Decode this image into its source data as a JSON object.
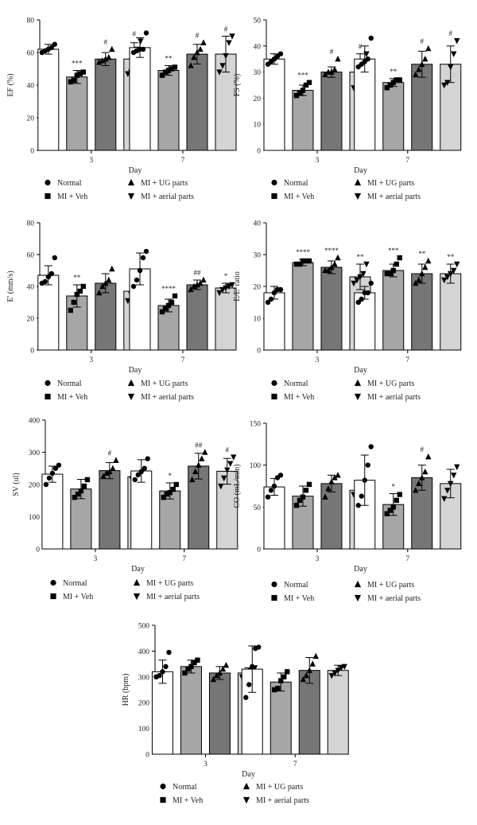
{
  "legend": {
    "normal": "Normal",
    "ug": "MI + UG parts",
    "veh": "MI + Veh",
    "aerial": "MI + aerial parts"
  },
  "colors": {
    "normal": "#ffffff",
    "veh": "#a6a6a6",
    "ug": "#767676",
    "aerial": "#d4d4d4"
  },
  "chart_data": [
    {
      "id": "ef",
      "type": "bar",
      "xlabel": "Day",
      "ylabel": "EF (%)",
      "categories": [
        "3",
        "7"
      ],
      "ylim": [
        0,
        80
      ],
      "yticks": [
        0,
        20,
        40,
        60,
        80
      ],
      "series": [
        {
          "name": "Normal",
          "marker": "circle",
          "values": [
            62,
            63
          ],
          "errors": [
            3,
            6
          ],
          "points": [
            [
              60,
              61,
              62,
              63,
              65
            ],
            [
              60,
              61,
              62,
              62,
              72
            ]
          ],
          "sig": [
            "",
            ""
          ]
        },
        {
          "name": "MI + Veh",
          "marker": "square",
          "values": [
            45,
            49
          ],
          "errors": [
            4,
            3
          ],
          "points": [
            [
              42,
              43,
              46,
              47,
              48
            ],
            [
              46,
              48,
              49,
              50,
              51
            ]
          ],
          "sig": [
            "***",
            "**"
          ]
        },
        {
          "name": "MI + UG parts",
          "marker": "up",
          "values": [
            56,
            59
          ],
          "errors": [
            4,
            6
          ],
          "points": [
            [
              54,
              55,
              56,
              57,
              62
            ],
            [
              52,
              57,
              60,
              62,
              66
            ]
          ],
          "sig": [
            "#",
            "#"
          ]
        },
        {
          "name": "MI + aerial parts",
          "marker": "down",
          "values": [
            56,
            59
          ],
          "errors": [
            10,
            11
          ],
          "points": [
            [
              47,
              48,
              55,
              62,
              67
            ],
            [
              48,
              52,
              58,
              66,
              70
            ]
          ],
          "sig": [
            "#",
            "#"
          ]
        }
      ]
    },
    {
      "id": "fs",
      "type": "bar",
      "xlabel": "Day",
      "ylabel": "FS (%)",
      "categories": [
        "3",
        "7"
      ],
      "ylim": [
        0,
        50
      ],
      "yticks": [
        0,
        10,
        20,
        30,
        40,
        50
      ],
      "series": [
        {
          "name": "Normal",
          "marker": "circle",
          "values": [
            35,
            35
          ],
          "errors": [
            2,
            5
          ],
          "points": [
            [
              33,
              34,
              35,
              36,
              37
            ],
            [
              32,
              33,
              34,
              35,
              43
            ]
          ],
          "sig": [
            "",
            ""
          ]
        },
        {
          "name": "MI + Veh",
          "marker": "square",
          "values": [
            23,
            26
          ],
          "errors": [
            2,
            1.5
          ],
          "points": [
            [
              21,
              22,
              23,
              25,
              26
            ],
            [
              24,
              25,
              26,
              27,
              27
            ]
          ],
          "sig": [
            "***",
            "**"
          ]
        },
        {
          "name": "MI + UG parts",
          "marker": "up",
          "values": [
            30,
            33
          ],
          "errors": [
            2,
            5
          ],
          "points": [
            [
              29,
              30,
              30,
              31,
              35
            ],
            [
              29,
              31,
              33,
              35,
              39
            ]
          ],
          "sig": [
            "#",
            "#"
          ]
        },
        {
          "name": "MI + aerial parts",
          "marker": "down",
          "values": [
            30,
            33
          ],
          "errors": [
            7,
            7
          ],
          "points": [
            [
              24,
              25,
              28,
              33,
              37
            ],
            [
              25,
              26,
              32,
              37,
              42
            ]
          ],
          "sig": [
            "#",
            "#"
          ]
        }
      ]
    },
    {
      "id": "e",
      "type": "bar",
      "xlabel": "Day",
      "ylabel": "E' (mm/s)",
      "categories": [
        "3",
        "7"
      ],
      "ylim": [
        0,
        80
      ],
      "yticks": [
        0,
        20,
        40,
        60,
        80
      ],
      "series": [
        {
          "name": "Normal",
          "marker": "circle",
          "values": [
            47,
            51
          ],
          "errors": [
            6,
            10
          ],
          "points": [
            [
              42,
              43,
              46,
              48,
              58
            ],
            [
              40,
              44,
              50,
              58,
              62
            ]
          ],
          "sig": [
            "",
            ""
          ]
        },
        {
          "name": "MI + Veh",
          "marker": "square",
          "values": [
            34,
            28
          ],
          "errors": [
            7,
            4
          ],
          "points": [
            [
              25,
              30,
              35,
              37,
              40
            ],
            [
              24,
              26,
              28,
              30,
              34
            ]
          ],
          "sig": [
            "**",
            "****"
          ]
        },
        {
          "name": "MI + UG parts",
          "marker": "up",
          "values": [
            42,
            41
          ],
          "errors": [
            6,
            3
          ],
          "points": [
            [
              36,
              40,
              42,
              44,
              51
            ],
            [
              38,
              40,
              41,
              42,
              44
            ]
          ],
          "sig": [
            "",
            "##"
          ]
        },
        {
          "name": "MI + aerial parts",
          "marker": "down",
          "values": [
            37,
            39
          ],
          "errors": [
            5,
            3
          ],
          "points": [
            [
              31,
              35,
              37,
              39,
              43
            ],
            [
              36,
              38,
              39,
              40,
              41
            ]
          ],
          "sig": [
            "",
            "*"
          ]
        }
      ]
    },
    {
      "id": "ee",
      "type": "bar",
      "xlabel": "Day",
      "ylabel": "E/E' ratio",
      "categories": [
        "3",
        "7"
      ],
      "ylim": [
        0,
        40
      ],
      "yticks": [
        0,
        10,
        20,
        30,
        40
      ],
      "series": [
        {
          "name": "Normal",
          "marker": "circle",
          "values": [
            18,
            18
          ],
          "errors": [
            2,
            2
          ],
          "points": [
            [
              15,
              16,
              18,
              19,
              19
            ],
            [
              15,
              16,
              18,
              18,
              21
            ]
          ],
          "sig": [
            "",
            ""
          ]
        },
        {
          "name": "MI + Veh",
          "marker": "square",
          "values": [
            27.5,
            25
          ],
          "errors": [
            1,
            2
          ],
          "points": [
            [
              27,
              27,
              28,
              28,
              28
            ],
            [
              24,
              24,
              25,
              27,
              29
            ]
          ],
          "sig": [
            "****",
            "***"
          ]
        },
        {
          "name": "MI + UG parts",
          "marker": "up",
          "values": [
            26,
            24
          ],
          "errors": [
            2,
            3
          ],
          "points": [
            [
              25,
              25,
              26,
              27,
              29
            ],
            [
              21,
              22,
              24,
              26,
              28
            ]
          ],
          "sig": [
            "****",
            "**"
          ]
        },
        {
          "name": "MI + aerial parts",
          "marker": "down",
          "values": [
            23,
            24
          ],
          "errors": [
            4,
            3
          ],
          "points": [
            [
              21,
              22,
              23,
              24,
              27
            ],
            [
              22,
              23,
              24,
              25,
              27
            ]
          ],
          "sig": [
            "**",
            "**"
          ]
        }
      ]
    },
    {
      "id": "sv",
      "type": "bar",
      "xlabel": "Day",
      "ylabel": "SV (ul)",
      "categories": [
        "3",
        "7"
      ],
      "ylim": [
        0,
        400
      ],
      "yticks": [
        0,
        100,
        200,
        300,
        400
      ],
      "series": [
        {
          "name": "Normal",
          "marker": "circle",
          "values": [
            232,
            242
          ],
          "errors": [
            25,
            35
          ],
          "points": [
            [
              200,
              220,
              235,
              250,
              260
            ],
            [
              215,
              230,
              240,
              250,
              280
            ]
          ],
          "sig": [
            "",
            ""
          ]
        },
        {
          "name": "MI + Veh",
          "marker": "square",
          "values": [
            186,
            180
          ],
          "errors": [
            30,
            25
          ],
          "points": [
            [
              160,
              170,
              180,
              195,
              215
            ],
            [
              160,
              170,
              175,
              185,
              200
            ]
          ],
          "sig": [
            "",
            "*"
          ]
        },
        {
          "name": "MI + UG parts",
          "marker": "up",
          "values": [
            243,
            257
          ],
          "errors": [
            25,
            40
          ],
          "points": [
            [
              225,
              235,
              240,
              250,
              275
            ],
            [
              215,
              240,
              260,
              280,
              300
            ]
          ],
          "sig": [
            "#",
            "##"
          ]
        },
        {
          "name": "MI + aerial parts",
          "marker": "down",
          "values": [
            224,
            241
          ],
          "errors": [
            8,
            40
          ],
          "points": [
            [
              218,
              222,
              225,
              228,
              232
            ],
            [
              195,
              220,
              245,
              265,
              285
            ]
          ],
          "sig": [
            "",
            "#"
          ]
        }
      ]
    },
    {
      "id": "co",
      "type": "bar",
      "xlabel": "Day",
      "ylabel": "CO (mL/min)",
      "categories": [
        "3",
        "7"
      ],
      "ylim": [
        0,
        150
      ],
      "yticks": [
        0,
        50,
        100,
        150
      ],
      "series": [
        {
          "name": "Normal",
          "marker": "circle",
          "values": [
            74,
            82
          ],
          "errors": [
            10,
            30
          ],
          "points": [
            [
              62,
              70,
              75,
              85,
              88
            ],
            [
              52,
              63,
              82,
              100,
              122
            ]
          ],
          "sig": [
            "",
            ""
          ]
        },
        {
          "name": "MI + Veh",
          "marker": "square",
          "values": [
            63,
            53
          ],
          "errors": [
            12,
            13
          ],
          "points": [
            [
              52,
              58,
              62,
              70,
              77
            ],
            [
              42,
              46,
              50,
              58,
              65
            ]
          ],
          "sig": [
            "",
            "*"
          ]
        },
        {
          "name": "MI + UG parts",
          "marker": "up",
          "values": [
            78,
            85
          ],
          "errors": [
            10,
            15
          ],
          "points": [
            [
              62,
              72,
              80,
              85,
              88
            ],
            [
              70,
              78,
              85,
              92,
              110
            ]
          ],
          "sig": [
            "",
            "#"
          ]
        },
        {
          "name": "MI + aerial parts",
          "marker": "down",
          "values": [
            70,
            78
          ],
          "errors": [
            5,
            17
          ],
          "points": [
            [
              65,
              68,
              70,
              72,
              75
            ],
            [
              60,
              70,
              78,
              88,
              98
            ]
          ],
          "sig": [
            "",
            ""
          ]
        }
      ]
    },
    {
      "id": "hr",
      "type": "bar",
      "xlabel": "Day",
      "ylabel": "HR (bpm)",
      "categories": [
        "3",
        "7"
      ],
      "ylim": [
        0,
        500
      ],
      "yticks": [
        0,
        100,
        200,
        300,
        400,
        500
      ],
      "series": [
        {
          "name": "Normal",
          "marker": "circle",
          "values": [
            320,
            330
          ],
          "errors": [
            45,
            90
          ],
          "points": [
            [
              300,
              305,
              320,
              340,
              395
            ],
            [
              220,
              270,
              340,
              410,
              415
            ]
          ],
          "sig": [
            "",
            ""
          ]
        },
        {
          "name": "MI + Veh",
          "marker": "square",
          "values": [
            340,
            280
          ],
          "errors": [
            25,
            35
          ],
          "points": [
            [
              315,
              330,
              340,
              355,
              365
            ],
            [
              250,
              255,
              285,
              300,
              320
            ]
          ],
          "sig": [
            "",
            ""
          ]
        },
        {
          "name": "MI + UG parts",
          "marker": "up",
          "values": [
            315,
            325
          ],
          "errors": [
            25,
            50
          ],
          "points": [
            [
              290,
              305,
              315,
              330,
              345
            ],
            [
              290,
              305,
              325,
              350,
              380
            ]
          ],
          "sig": [
            "",
            ""
          ]
        },
        {
          "name": "MI + aerial parts",
          "marker": "down",
          "values": [
            315,
            325
          ],
          "errors": [
            20,
            20
          ],
          "points": [
            [
              300,
              305,
              315,
              325,
              335
            ],
            [
              305,
              315,
              325,
              335,
              340
            ]
          ],
          "sig": [
            "",
            ""
          ]
        }
      ]
    }
  ]
}
